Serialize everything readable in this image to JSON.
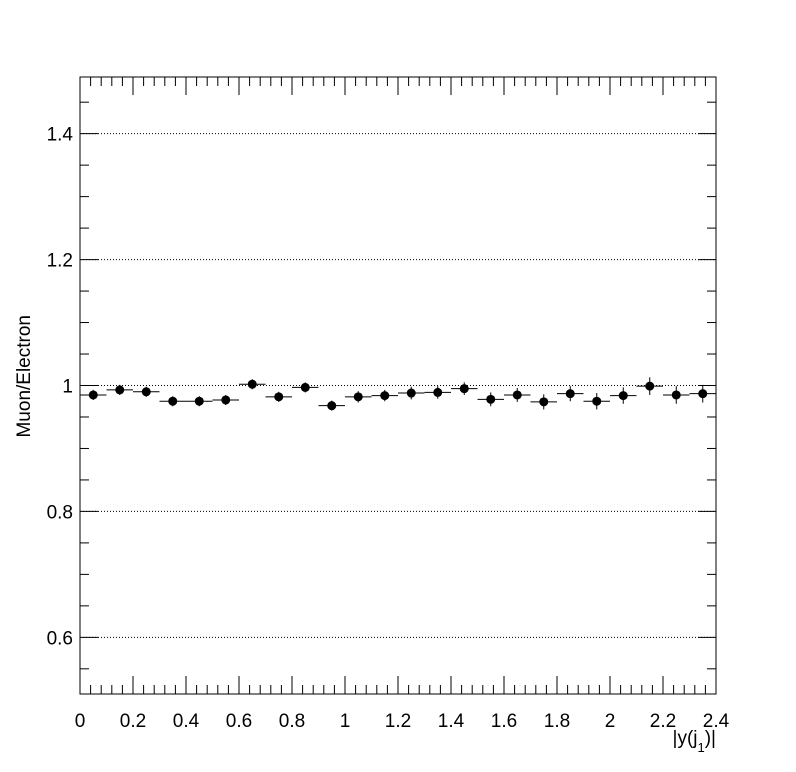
{
  "chart_data": {
    "type": "scatter",
    "title": "",
    "xlabel": "|y(j",
    "xlabel_sub": "1",
    "xlabel_suffix": ")|",
    "ylabel": "Muon/Electron",
    "xlim": [
      0,
      2.4
    ],
    "ylim": [
      0.51,
      1.49
    ],
    "grid": {
      "x": false,
      "y": true,
      "y_lines": [
        0.6,
        0.8,
        1.0,
        1.2,
        1.4
      ]
    },
    "legend": "none",
    "marker_color": "#000000",
    "x_ticks": [
      {
        "value": 0,
        "label": "0"
      },
      {
        "value": 0.2,
        "label": "0.2"
      },
      {
        "value": 0.4,
        "label": "0.4"
      },
      {
        "value": 0.6,
        "label": "0.6"
      },
      {
        "value": 0.8,
        "label": "0.8"
      },
      {
        "value": 1.0,
        "label": "1"
      },
      {
        "value": 1.2,
        "label": "1.2"
      },
      {
        "value": 1.4,
        "label": "1.4"
      },
      {
        "value": 1.6,
        "label": "1.6"
      },
      {
        "value": 1.8,
        "label": "1.8"
      },
      {
        "value": 2.0,
        "label": "2"
      },
      {
        "value": 2.2,
        "label": "2.2"
      },
      {
        "value": 2.4,
        "label": "2.4"
      }
    ],
    "y_ticks": [
      {
        "value": 0.6,
        "label": "0.6"
      },
      {
        "value": 0.8,
        "label": "0.8"
      },
      {
        "value": 1.0,
        "label": "1"
      },
      {
        "value": 1.2,
        "label": "1.2"
      },
      {
        "value": 1.4,
        "label": "1.4"
      }
    ],
    "bin_width": 0.1,
    "points": [
      {
        "x": 0.05,
        "y": 0.985,
        "yerr": 0.008
      },
      {
        "x": 0.15,
        "y": 0.993,
        "yerr": 0.008
      },
      {
        "x": 0.25,
        "y": 0.99,
        "yerr": 0.008
      },
      {
        "x": 0.35,
        "y": 0.975,
        "yerr": 0.008
      },
      {
        "x": 0.45,
        "y": 0.975,
        "yerr": 0.008
      },
      {
        "x": 0.55,
        "y": 0.977,
        "yerr": 0.008
      },
      {
        "x": 0.65,
        "y": 1.002,
        "yerr": 0.008
      },
      {
        "x": 0.75,
        "y": 0.982,
        "yerr": 0.008
      },
      {
        "x": 0.85,
        "y": 0.997,
        "yerr": 0.008
      },
      {
        "x": 0.95,
        "y": 0.968,
        "yerr": 0.008
      },
      {
        "x": 1.05,
        "y": 0.982,
        "yerr": 0.009
      },
      {
        "x": 1.15,
        "y": 0.984,
        "yerr": 0.009
      },
      {
        "x": 1.25,
        "y": 0.988,
        "yerr": 0.01
      },
      {
        "x": 1.35,
        "y": 0.989,
        "yerr": 0.01
      },
      {
        "x": 1.45,
        "y": 0.995,
        "yerr": 0.01
      },
      {
        "x": 1.55,
        "y": 0.978,
        "yerr": 0.011
      },
      {
        "x": 1.65,
        "y": 0.985,
        "yerr": 0.011
      },
      {
        "x": 1.75,
        "y": 0.974,
        "yerr": 0.012
      },
      {
        "x": 1.85,
        "y": 0.987,
        "yerr": 0.012
      },
      {
        "x": 1.95,
        "y": 0.975,
        "yerr": 0.013
      },
      {
        "x": 2.05,
        "y": 0.984,
        "yerr": 0.013
      },
      {
        "x": 2.15,
        "y": 0.999,
        "yerr": 0.014
      },
      {
        "x": 2.25,
        "y": 0.985,
        "yerr": 0.014
      },
      {
        "x": 2.35,
        "y": 0.987,
        "yerr": 0.014
      }
    ]
  }
}
